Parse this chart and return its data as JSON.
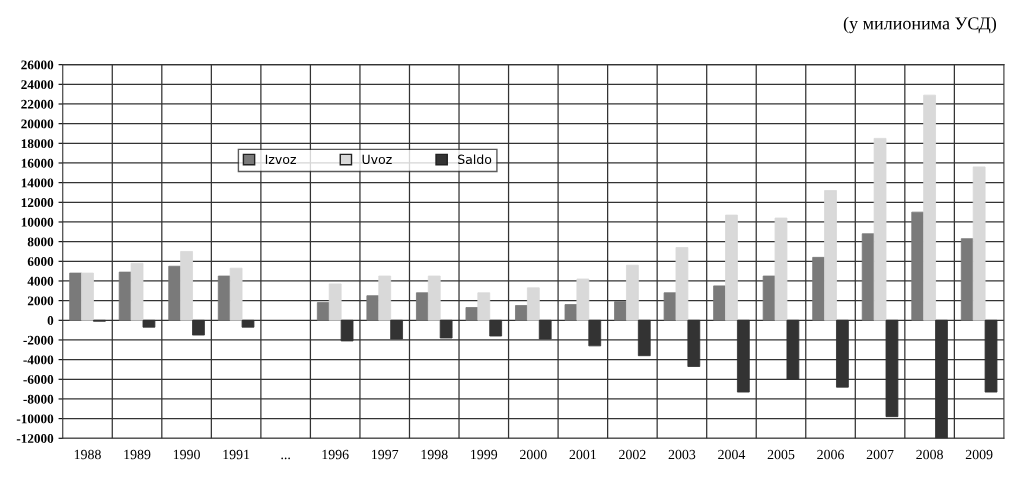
{
  "chart_data": {
    "type": "bar",
    "categories": [
      "1988",
      "1989",
      "1990",
      "1991",
      "...",
      "1996",
      "1997",
      "1998",
      "1999",
      "2000",
      "2001",
      "2002",
      "2003",
      "2004",
      "2005",
      "2006",
      "2007",
      "2008",
      "2009"
    ],
    "series": [
      {
        "name": "Izvoz",
        "color": "#7a7a7a",
        "values": [
          4800,
          4900,
          5500,
          4500,
          null,
          1800,
          2500,
          2800,
          1300,
          1500,
          1600,
          1900,
          2800,
          3500,
          4500,
          6400,
          8800,
          11000,
          8300
        ]
      },
      {
        "name": "Uvoz",
        "color": "#d9d9d9",
        "values": [
          4800,
          5800,
          7000,
          5300,
          null,
          3700,
          4500,
          4500,
          2800,
          3300,
          4200,
          5600,
          7400,
          10700,
          10400,
          13200,
          18500,
          22900,
          15600
        ]
      },
      {
        "name": "Saldo",
        "color": "#333333",
        "values": [
          -100,
          -700,
          -1500,
          -700,
          null,
          -2100,
          -1900,
          -1800,
          -1600,
          -1900,
          -2600,
          -3600,
          -4700,
          -7300,
          -6000,
          -6800,
          -9800,
          -12000,
          -7300
        ]
      }
    ],
    "ylim": [
      -12000,
      26000
    ],
    "yticks": [
      -12000,
      -10000,
      -8000,
      -6000,
      -4000,
      -2000,
      0,
      2000,
      4000,
      6000,
      8000,
      10000,
      12000,
      14000,
      16000,
      18000,
      20000,
      22000,
      24000,
      26000
    ],
    "grid": true,
    "legend": "top left",
    "annotations": [
      "(у милионима УСД)"
    ]
  }
}
